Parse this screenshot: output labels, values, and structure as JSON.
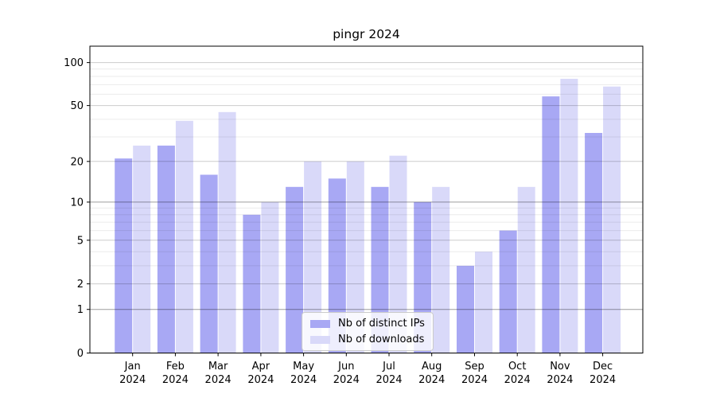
{
  "chart": {
    "style": {
      "background": "#ffffff",
      "spine_color": "#000000",
      "grid_major_color": "#c4c4c4",
      "grid_minor_color": "#ebebeb",
      "legend_border_color": "#cbcbcb"
    }
  },
  "chart_data": {
    "type": "bar",
    "title": "pingr 2024",
    "categories": [
      "Jan 2024",
      "Feb 2024",
      "Mar 2024",
      "Apr 2024",
      "May 2024",
      "Jun 2024",
      "Jul 2024",
      "Aug 2024",
      "Sep 2024",
      "Oct 2024",
      "Nov 2024",
      "Dec 2024"
    ],
    "series": [
      {
        "name": "Nb of distinct IPs",
        "color": "#a8a8f4",
        "values": [
          21,
          26,
          16,
          8,
          13,
          15,
          13,
          10,
          3,
          6,
          58,
          32
        ]
      },
      {
        "name": "Nb of downloads",
        "color": "#d9d9f9",
        "values": [
          26,
          39,
          45,
          10,
          20,
          20,
          22,
          13,
          4,
          13,
          77,
          68
        ]
      }
    ],
    "yscale": "log1p",
    "y_tick_values": [
      0,
      1,
      2,
      5,
      10,
      20,
      50,
      100
    ],
    "y_tick_labels": [
      "0",
      "1",
      "2",
      "5",
      "10",
      "20",
      "50",
      "100"
    ],
    "y_minor_gridlines": [
      3,
      4,
      6,
      7,
      8,
      9,
      30,
      40,
      60,
      70,
      80,
      90
    ],
    "ylim": [
      0,
      130
    ],
    "xlabel": "",
    "ylabel": "",
    "grid": true,
    "legend_position": "lower center"
  }
}
